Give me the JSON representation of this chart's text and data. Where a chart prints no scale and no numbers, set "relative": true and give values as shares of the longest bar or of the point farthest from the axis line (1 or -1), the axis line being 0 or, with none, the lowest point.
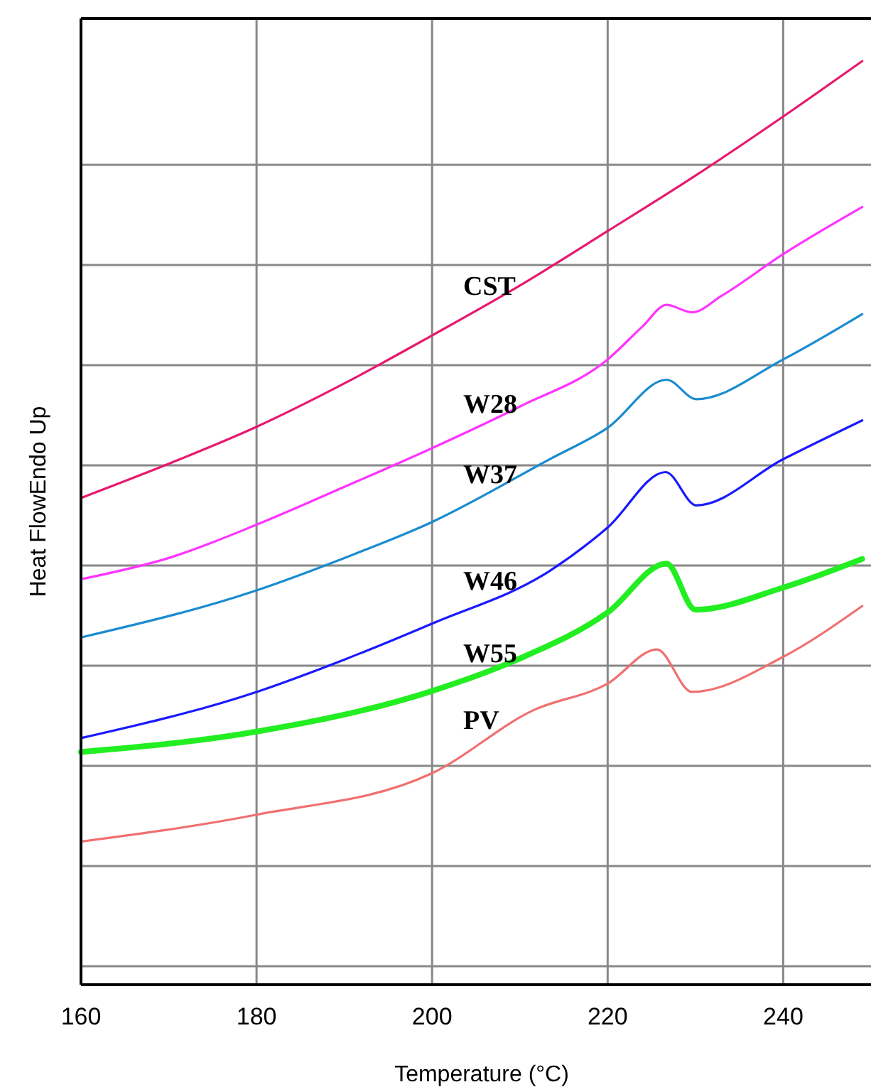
{
  "chart_data": {
    "type": "line",
    "xlabel": "Temperature (°C)",
    "ylabel": "Heat FlowEndo Up",
    "relative": true,
    "grid": true,
    "xlim": [
      160,
      250
    ],
    "xticks": [
      160,
      180,
      200,
      220,
      240
    ],
    "series": [
      {
        "name": "CST",
        "color": "#e8186e",
        "x": [
          160,
          170,
          180,
          190,
          200,
          210,
          220,
          230,
          240,
          249
        ],
        "values": [
          0.527,
          0.564,
          0.604,
          0.651,
          0.703,
          0.757,
          0.816,
          0.876,
          0.94,
          1.0
        ]
      },
      {
        "name": "W28",
        "color": "#ff33ff",
        "x": [
          160,
          170,
          180,
          190,
          200,
          210,
          220,
          224,
          226.7,
          229.6,
          233,
          240,
          249
        ],
        "values": [
          0.439,
          0.462,
          0.498,
          0.539,
          0.581,
          0.626,
          0.677,
          0.713,
          0.736,
          0.728,
          0.746,
          0.791,
          0.842
        ]
      },
      {
        "name": "W37",
        "color": "#1a8cd0",
        "x": [
          160,
          180,
          190,
          200,
          213.4,
          220,
          226.7,
          230.1,
          240,
          249
        ],
        "values": [
          0.376,
          0.427,
          0.462,
          0.501,
          0.569,
          0.603,
          0.655,
          0.634,
          0.677,
          0.726
        ]
      },
      {
        "name": "W46",
        "color": "#1a1aff",
        "x": [
          160,
          180,
          190,
          200,
          213.4,
          220,
          226.6,
          230.1,
          240,
          249
        ],
        "values": [
          0.267,
          0.317,
          0.352,
          0.391,
          0.448,
          0.495,
          0.555,
          0.519,
          0.569,
          0.611
        ]
      },
      {
        "name": "W55",
        "color": "#22ee22",
        "x": [
          160,
          180,
          200,
          209.7,
          220,
          226.7,
          230,
          240,
          249
        ],
        "values": [
          0.252,
          0.274,
          0.318,
          0.352,
          0.403,
          0.456,
          0.406,
          0.43,
          0.461
        ]
      },
      {
        "name": "PV",
        "color": "#f07070",
        "x": [
          160,
          180,
          200,
          211.5,
          220,
          225.6,
          229.6,
          240,
          249
        ],
        "values": [
          0.155,
          0.184,
          0.229,
          0.297,
          0.326,
          0.363,
          0.317,
          0.355,
          0.41
        ]
      }
    ]
  }
}
